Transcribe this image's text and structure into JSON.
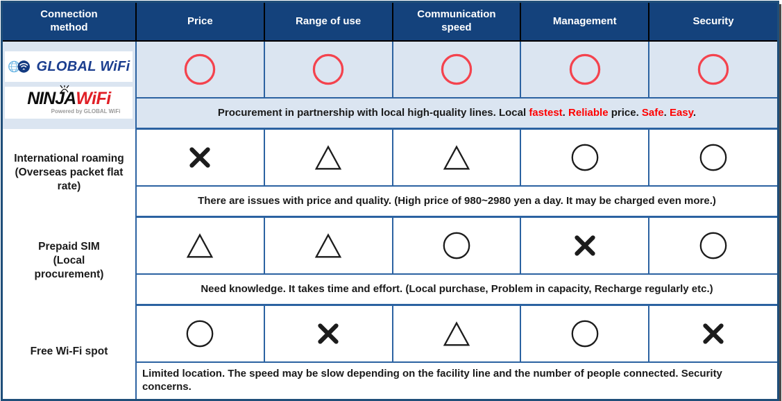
{
  "colors": {
    "header_bg": "#14427c",
    "header_text": "#ffffff",
    "row_highlight_bg": "#dbe5f1",
    "grid_blue": "#2b62a1",
    "outer_border": "#1f4e79",
    "accent_red": "#ff0000",
    "rating_red": "#f4434e",
    "rating_black": "#1c1c1c",
    "global_wifi_blue": "#1b3e8f",
    "ninja_wifi_red": "#e01f26"
  },
  "header": {
    "columns": [
      "Connection method",
      "Price",
      "Range of use",
      "Communication speed",
      "Management",
      "Security"
    ]
  },
  "brand": {
    "global_wifi_text": "GLOBAL WiFi",
    "ninja_text_black": "NINJA",
    "ninja_text_red": "WiFi",
    "powered_by": "Powered by GLOBAL WiFi"
  },
  "rating_legend": {
    "circle": "good",
    "triangle": "fair",
    "cross": "poor"
  },
  "rows": [
    {
      "name": "GLOBAL WiFi / NINJA WiFi",
      "label": "",
      "sublabel": "",
      "ratings": [
        "circle",
        "circle",
        "circle",
        "circle",
        "circle"
      ],
      "symbol_color": "#f4434e",
      "note_segments": [
        {
          "text": "Procurement in partnership with local high-quality lines. Local ",
          "red": false
        },
        {
          "text": "fastest",
          "red": true
        },
        {
          "text": ". ",
          "red": false
        },
        {
          "text": "Reliable",
          "red": true
        },
        {
          "text": " price. ",
          "red": false
        },
        {
          "text": "Safe",
          "red": true
        },
        {
          "text": ". ",
          "red": false
        },
        {
          "text": "Easy",
          "red": true
        },
        {
          "text": ".",
          "red": false
        }
      ]
    },
    {
      "name": "International roaming",
      "label": "International roaming",
      "sublabel": "(Overseas packet flat rate)",
      "ratings": [
        "cross",
        "triangle",
        "triangle",
        "circle",
        "circle"
      ],
      "symbol_color": "#1c1c1c",
      "note_segments": [
        {
          "text": "There are issues with price and quality. (High price of 980~2980 yen a day. It may be charged even more.)",
          "red": false
        }
      ]
    },
    {
      "name": "Prepaid SIM",
      "label": "Prepaid SIM",
      "sublabel": "(Local procurement)",
      "ratings": [
        "triangle",
        "triangle",
        "circle",
        "cross",
        "circle"
      ],
      "symbol_color": "#1c1c1c",
      "note_segments": [
        {
          "text": "Need knowledge. It takes time and effort. (Local purchase, Problem in capacity, Recharge regularly etc.)",
          "red": false
        }
      ]
    },
    {
      "name": "Free Wi-Fi spot",
      "label": "Free Wi-Fi spot",
      "sublabel": "",
      "ratings": [
        "circle",
        "cross",
        "triangle",
        "circle",
        "cross"
      ],
      "symbol_color": "#1c1c1c",
      "note_segments": [
        {
          "text": "Limited location. The speed may be slow depending on the facility line and the number of people connected. Security concerns.",
          "red": false
        }
      ]
    }
  ]
}
